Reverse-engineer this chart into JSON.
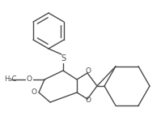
{
  "bg_color": "#ffffff",
  "line_color": "#4a4a4a",
  "line_width": 1.0,
  "figsize": [
    1.99,
    1.59
  ],
  "dpi": 100,
  "xlim": [
    0,
    199
  ],
  "ylim": [
    0,
    159
  ]
}
